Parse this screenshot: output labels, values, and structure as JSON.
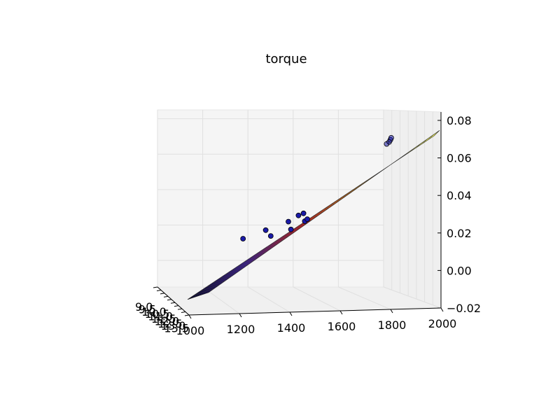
{
  "chart_data": {
    "type": "surface3d_scatter",
    "title": "torque",
    "x_axis": {
      "ticks": [
        1000,
        1200,
        1400,
        1600,
        1800,
        2000
      ],
      "range": [
        1000,
        2000
      ]
    },
    "y_axis": {
      "ticks": [
        9.0,
        9.5,
        10.0,
        10.5,
        11.0,
        11.5,
        12.0,
        12.5,
        13.0,
        13.5
      ],
      "tick_labels": [
        "9.0",
        "9.5",
        "10.0",
        "10.5",
        "11.0",
        "11.5",
        "12.0",
        "12.5",
        "13.0",
        "13.5"
      ],
      "range": [
        9.0,
        13.5
      ]
    },
    "z_axis": {
      "ticks": [
        -0.02,
        0.0,
        0.02,
        0.04,
        0.06,
        0.08
      ],
      "tick_labels": [
        "−0.02",
        "0.00",
        "0.02",
        "0.04",
        "0.06",
        "0.08"
      ],
      "range": [
        -0.02,
        0.08
      ]
    },
    "surface": {
      "x_range": [
        1000,
        2000
      ],
      "z_range": [
        -0.01,
        0.07
      ],
      "colormap": [
        "#0a0a2a",
        "#3a1f8a",
        "#c02020",
        "#e08a10",
        "#f0f060"
      ]
    },
    "points": [
      {
        "x": 1220,
        "z": 0.02
      },
      {
        "x": 1310,
        "z": 0.024
      },
      {
        "x": 1330,
        "z": 0.021
      },
      {
        "x": 1400,
        "z": 0.028
      },
      {
        "x": 1410,
        "z": 0.024
      },
      {
        "x": 1440,
        "z": 0.031
      },
      {
        "x": 1460,
        "z": 0.032
      },
      {
        "x": 1465,
        "z": 0.028
      },
      {
        "x": 1475,
        "z": 0.029
      },
      {
        "x": 1790,
        "z": 0.066
      },
      {
        "x": 1800,
        "z": 0.067
      },
      {
        "x": 1805,
        "z": 0.068
      },
      {
        "x": 1808,
        "z": 0.069
      }
    ],
    "point_color": "#1a1aa8",
    "grid": true
  }
}
